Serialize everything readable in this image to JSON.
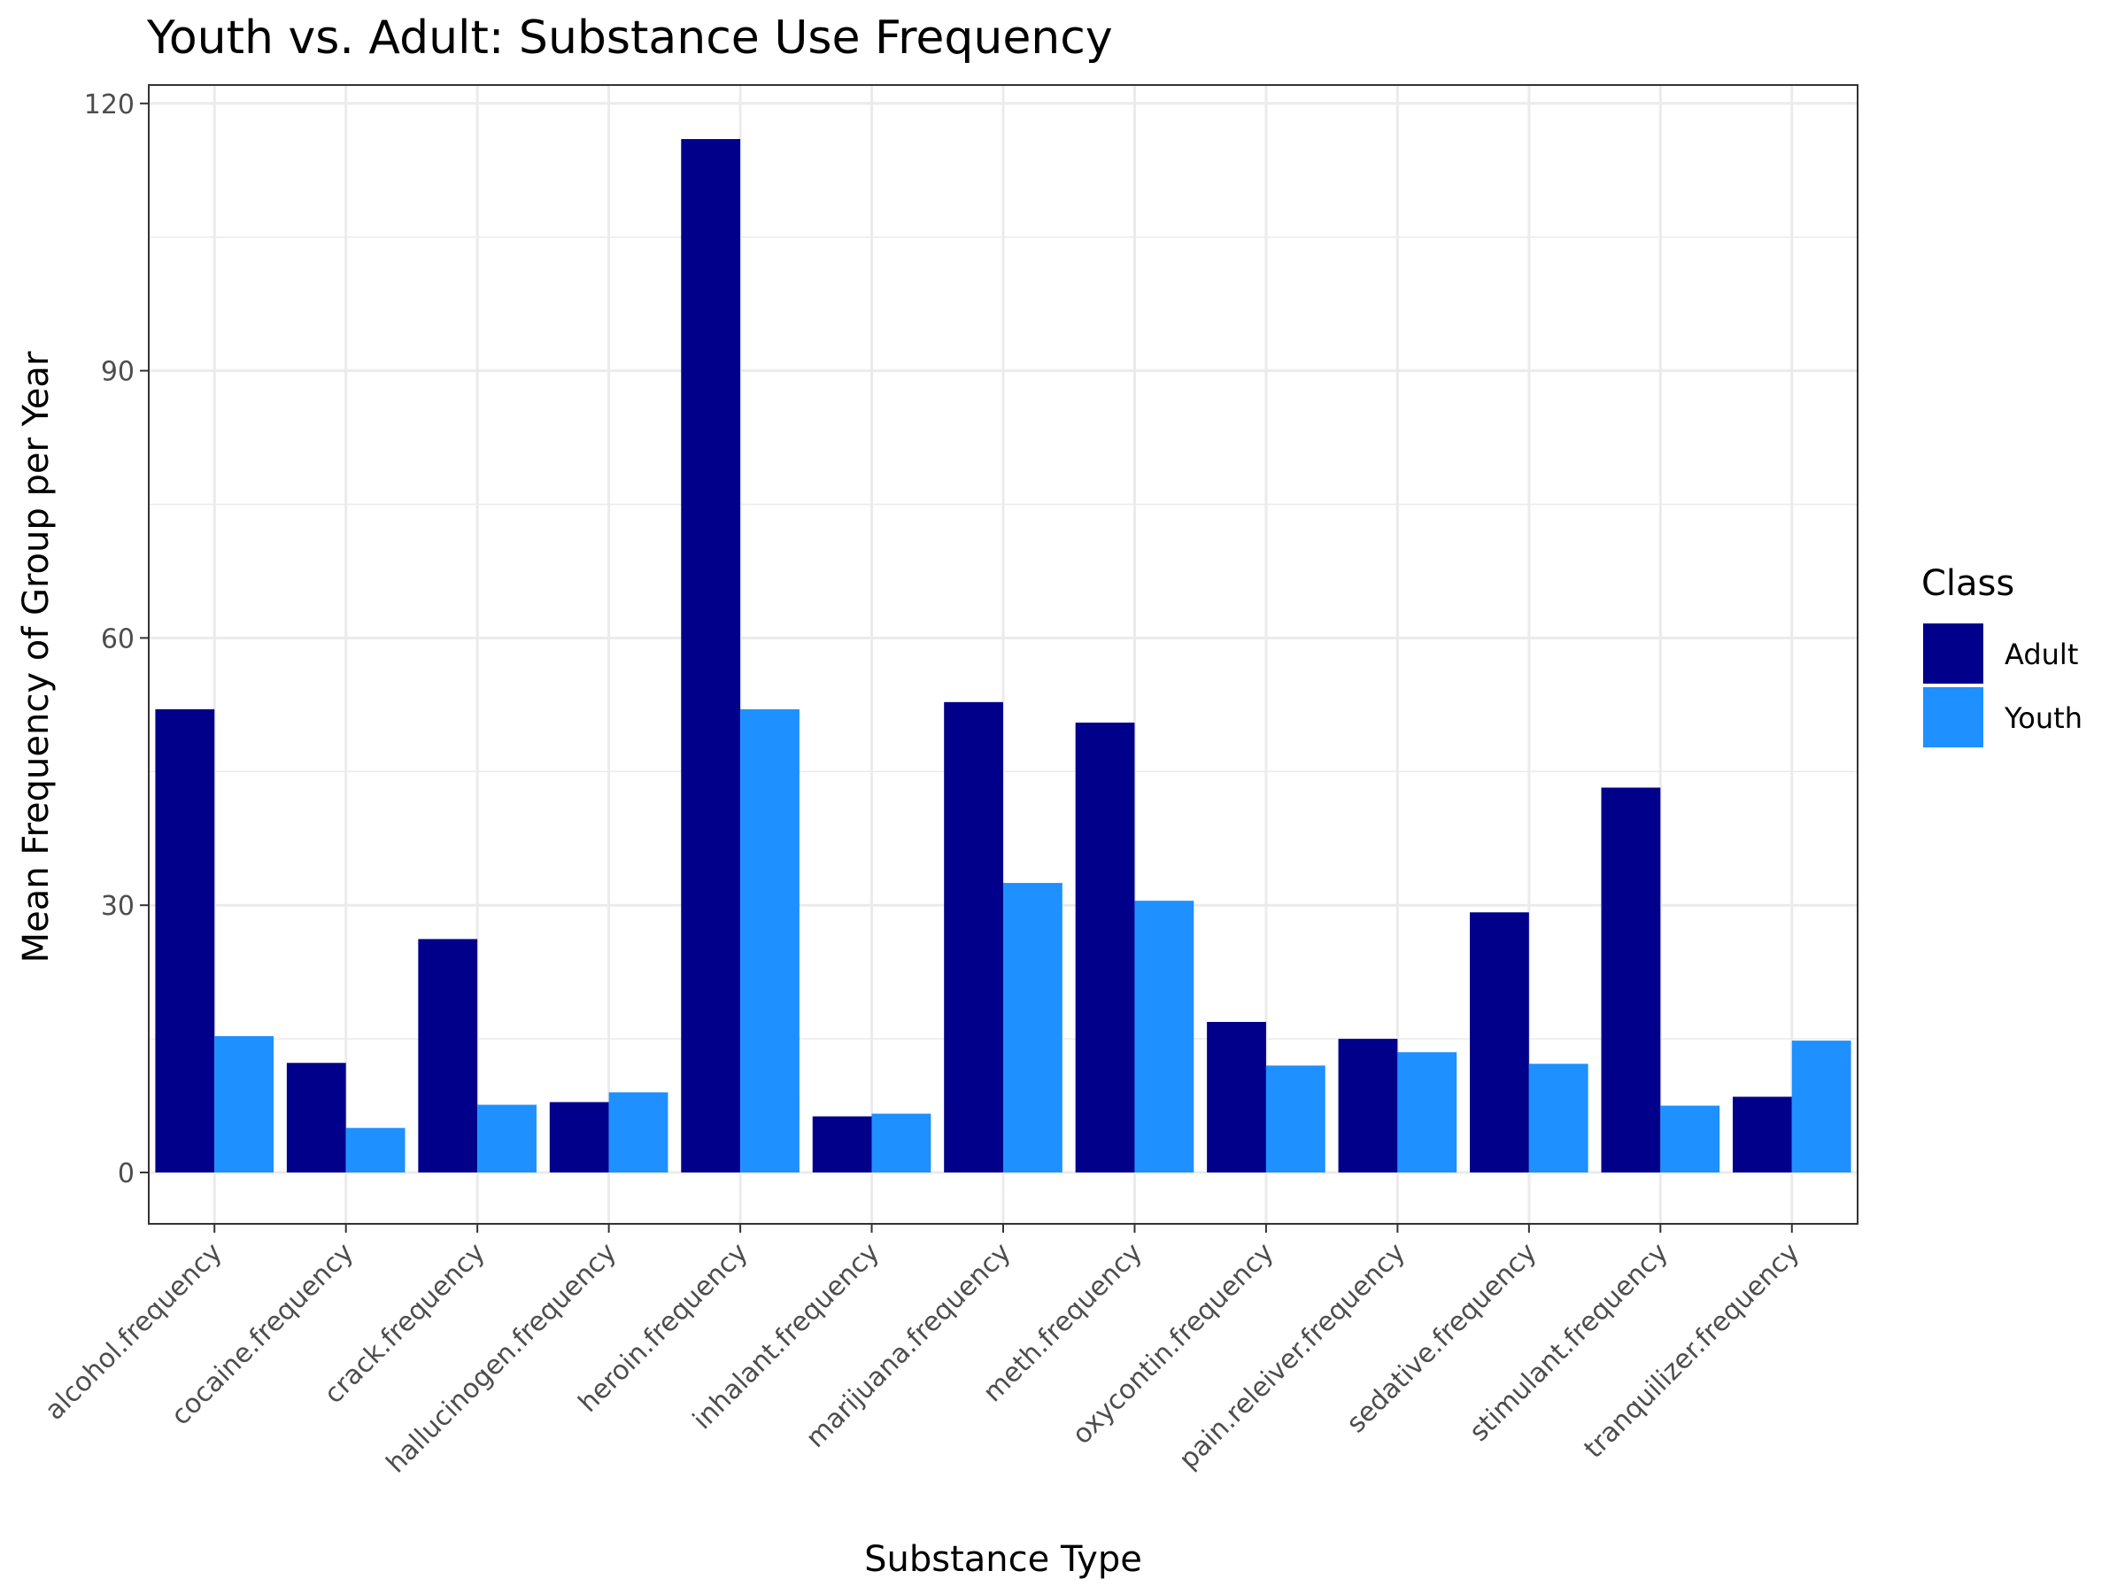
{
  "chart_data": {
    "type": "bar",
    "title": "Youth vs. Adult: Substance Use Frequency",
    "xlabel": "Substance Type",
    "ylabel": "Mean Frequency of Group per Year",
    "ylim": [
      -6,
      120
    ],
    "yticks": [
      0,
      30,
      60,
      90,
      120
    ],
    "grid": true,
    "legend": {
      "title": "Class",
      "position": "right"
    },
    "categories": [
      "alcohol.frequency",
      "cocaine.frequency",
      "crack.frequency",
      "hallucinogen.frequency",
      "heroin.frequency",
      "inhalant.frequency",
      "marijuana.frequency",
      "meth.frequency",
      "oxycontin.frequency",
      "pain.releiver.frequency",
      "sedative.frequency",
      "stimulant.frequency",
      "tranquilizer.frequency"
    ],
    "series": [
      {
        "name": "Adult",
        "color": "#00008b",
        "values": [
          52.0,
          12.3,
          26.2,
          7.9,
          116.0,
          6.3,
          52.8,
          50.5,
          16.9,
          15.0,
          29.2,
          43.2,
          8.5
        ]
      },
      {
        "name": "Youth",
        "color": "#1e90ff",
        "values": [
          15.3,
          5.0,
          7.6,
          9.0,
          52.0,
          6.6,
          32.5,
          30.5,
          12.0,
          13.5,
          12.2,
          7.5,
          14.8
        ]
      }
    ]
  }
}
